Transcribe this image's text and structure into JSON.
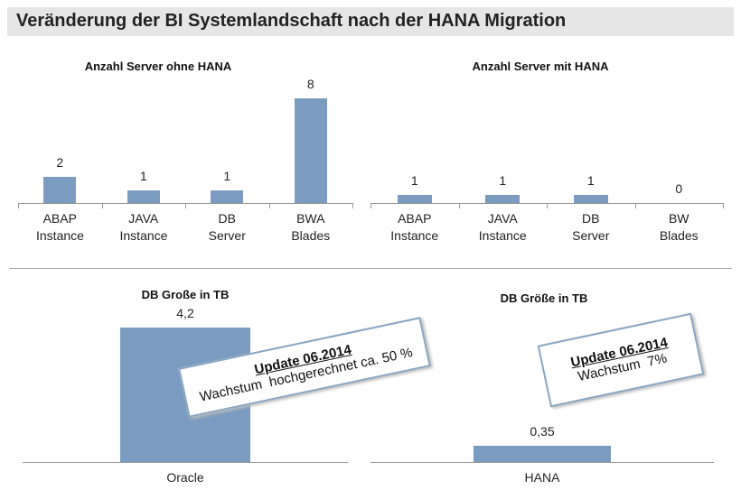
{
  "slide_title": "Veränderung der BI Systemlandschaft nach der HANA Migration",
  "chart_data": [
    {
      "type": "bar",
      "title": "Anzahl Server ohne HANA",
      "categories": [
        "ABAP Instance",
        "JAVA Instance",
        "DB Server",
        "BWA Blades"
      ],
      "values": [
        2,
        1,
        1,
        8
      ],
      "color": "#7b9cc0",
      "ylim": [
        0,
        9
      ]
    },
    {
      "type": "bar",
      "title": "Anzahl Server mit HANA",
      "categories": [
        "ABAP Instance",
        "JAVA Instance",
        "DB Server",
        "BW Blades"
      ],
      "values": [
        1,
        1,
        1,
        0
      ],
      "color": "#7b9cc0",
      "ylim": [
        0,
        14
      ]
    },
    {
      "type": "bar",
      "title": "DB Große in TB",
      "categories": [
        "Oracle"
      ],
      "values": [
        4.2
      ],
      "value_labels": [
        "4,2"
      ],
      "color": "#7b9cc0",
      "ylim": [
        0,
        4.7
      ],
      "annotation": {
        "title": "Update 06.2014",
        "text": "Wachstum  hochgerechnet ca. 50 %"
      }
    },
    {
      "type": "bar",
      "title": "DB Größe in TB",
      "categories": [
        "HANA"
      ],
      "values": [
        0.35
      ],
      "value_labels": [
        "0,35"
      ],
      "color": "#7b9cc0",
      "ylim": [
        0,
        3.3
      ],
      "annotation": {
        "title": "Update 06.2014",
        "text": "Wachstum  7%"
      }
    }
  ]
}
